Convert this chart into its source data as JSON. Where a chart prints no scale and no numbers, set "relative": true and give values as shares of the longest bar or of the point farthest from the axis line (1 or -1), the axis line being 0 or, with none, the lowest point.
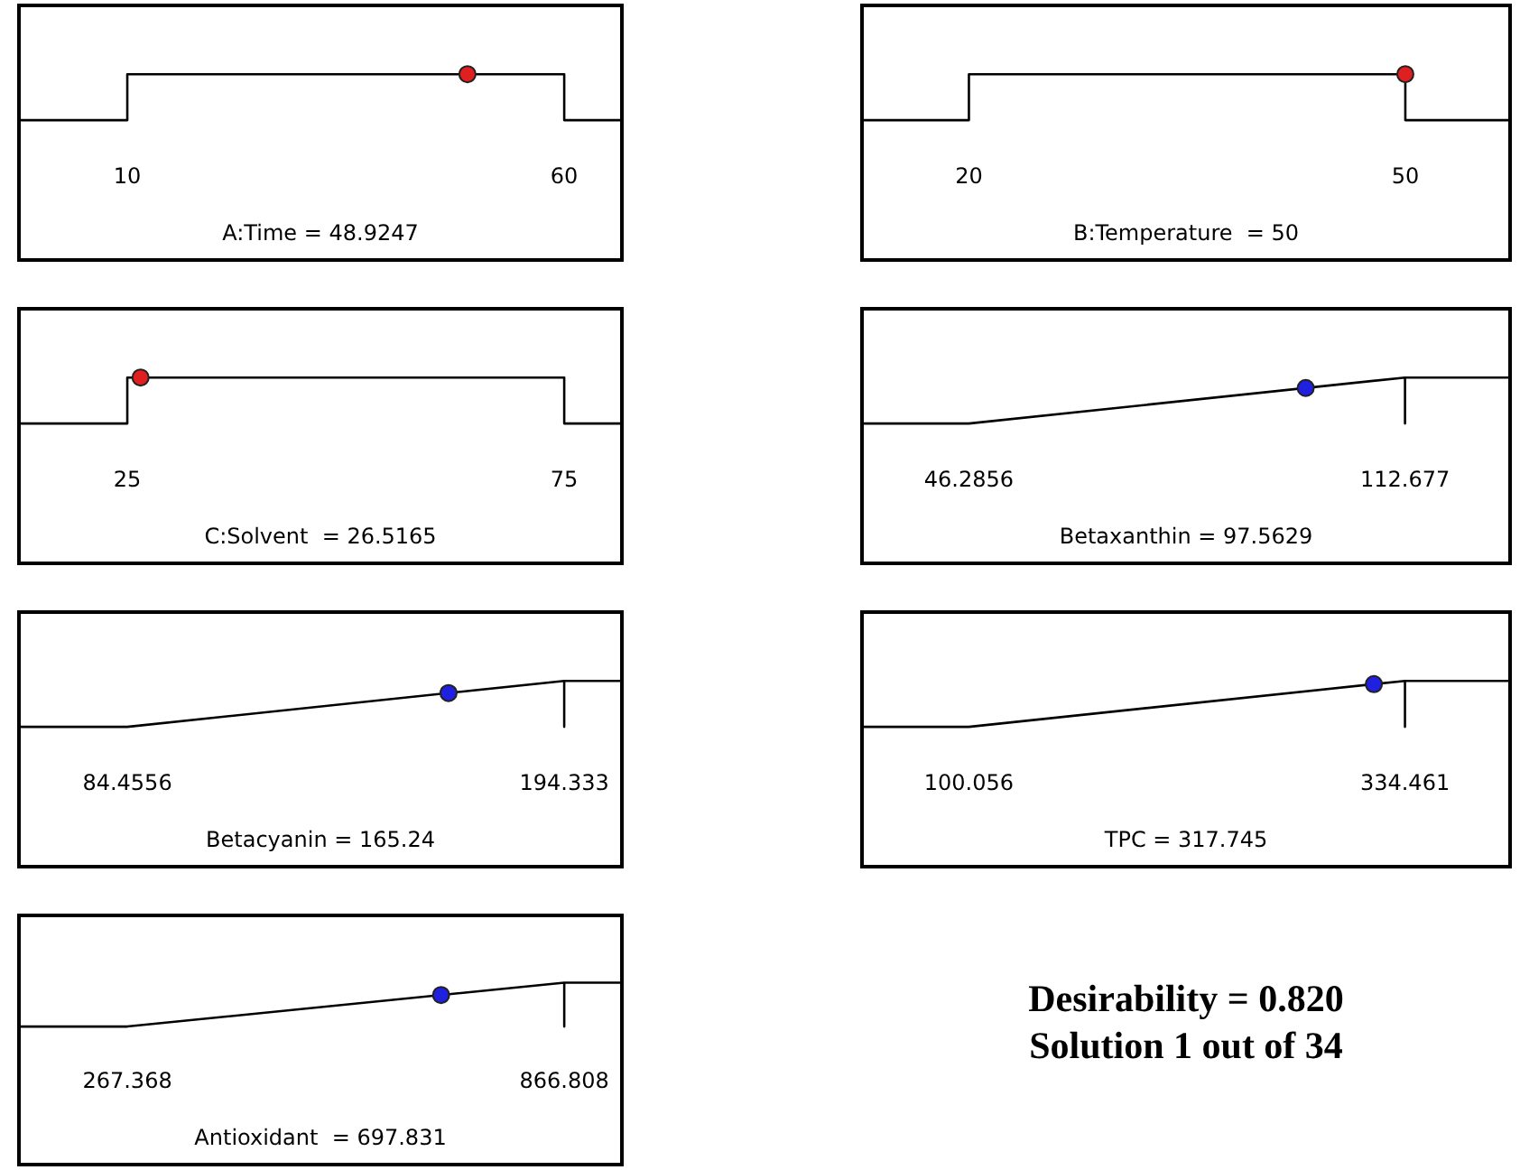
{
  "chart_data": [
    {
      "type": "line",
      "relative": true,
      "xlabel": "A:Time = 48.9247",
      "xlim": [
        -2.4,
        66.6
      ],
      "xticks": [
        10,
        60
      ],
      "tick_labels": "x",
      "grid": false,
      "series": [
        {
          "type": "line",
          "color": "#000000",
          "marker": "none",
          "x": [
            -2.4,
            10,
            10,
            60,
            60,
            66.6
          ],
          "values": [
            0,
            0,
            1,
            1,
            0,
            0
          ]
        },
        {
          "type": "scatter",
          "color": "#e02020",
          "marker": "circle",
          "x": [
            48.9247
          ],
          "values": [
            1
          ]
        }
      ]
    },
    {
      "type": "line",
      "relative": true,
      "xlabel": "B:Temperature  = 50",
      "xlim": [
        12.65,
        57.2
      ],
      "xticks": [
        20,
        50
      ],
      "tick_labels": "x",
      "grid": false,
      "series": [
        {
          "type": "line",
          "color": "#000000",
          "marker": "none",
          "x": [
            12.65,
            20,
            20,
            50,
            50,
            57.2
          ],
          "values": [
            0,
            0,
            1,
            1,
            0,
            0
          ]
        },
        {
          "type": "scatter",
          "color": "#e02020",
          "marker": "circle",
          "x": [
            50
          ],
          "values": [
            1
          ]
        }
      ]
    },
    {
      "type": "line",
      "relative": true,
      "xlabel": "C:Solvent  = 26.5165",
      "xlim": [
        12.6,
        81.6
      ],
      "xticks": [
        25,
        75
      ],
      "tick_labels": "x",
      "grid": false,
      "series": [
        {
          "type": "line",
          "color": "#000000",
          "marker": "none",
          "x": [
            12.6,
            25,
            25,
            75,
            75,
            81.6
          ],
          "values": [
            0,
            0,
            1,
            1,
            0,
            0
          ]
        },
        {
          "type": "scatter",
          "color": "#e02020",
          "marker": "circle",
          "x": [
            26.5165
          ],
          "values": [
            1
          ]
        }
      ]
    },
    {
      "type": "line",
      "relative": true,
      "xlabel": "Betaxanthin = 97.5629",
      "xlim": [
        30.02,
        128.67
      ],
      "xticks": [
        46.2856,
        112.677
      ],
      "tick_labels": "x",
      "grid": false,
      "series": [
        {
          "type": "line",
          "color": "#000000",
          "marker": "none",
          "x": [
            30.02,
            46.2856,
            112.677,
            112.677,
            112.677,
            128.67
          ],
          "values": [
            0,
            0,
            1,
            0,
            1,
            1
          ]
        },
        {
          "type": "scatter",
          "color": "#2020e0",
          "marker": "circle",
          "x": [
            97.5629
          ],
          "values": [
            0.772
          ]
        }
      ]
    },
    {
      "type": "line",
      "relative": true,
      "xlabel": "Betacyanin = 165.24",
      "xlim": [
        57.21,
        208.84
      ],
      "xticks": [
        84.4556,
        194.333
      ],
      "tick_labels": "x",
      "grid": false,
      "series": [
        {
          "type": "line",
          "color": "#000000",
          "marker": "none",
          "x": [
            57.21,
            84.4556,
            194.333,
            194.333,
            194.333,
            208.84
          ],
          "values": [
            0,
            0,
            1,
            0,
            1,
            1
          ]
        },
        {
          "type": "scatter",
          "color": "#2020e0",
          "marker": "circle",
          "x": [
            165.24
          ],
          "values": [
            0.735
          ]
        }
      ]
    },
    {
      "type": "line",
      "relative": true,
      "xlabel": "TPC = 317.745",
      "xlim": [
        42.63,
        390.95
      ],
      "xticks": [
        100.056,
        334.461
      ],
      "tick_labels": "x",
      "grid": false,
      "series": [
        {
          "type": "line",
          "color": "#000000",
          "marker": "none",
          "x": [
            42.63,
            100.056,
            334.461,
            334.461,
            334.461,
            390.95
          ],
          "values": [
            0,
            0,
            1,
            0,
            1,
            1
          ]
        },
        {
          "type": "scatter",
          "color": "#2020e0",
          "marker": "circle",
          "x": [
            317.745
          ],
          "values": [
            0.929
          ]
        }
      ]
    },
    {
      "type": "line",
      "relative": true,
      "xlabel": "Antioxidant  = 697.831",
      "xlim": [
        118.7,
        945.9
      ],
      "xticks": [
        267.368,
        866.808
      ],
      "tick_labels": "x",
      "grid": false,
      "series": [
        {
          "type": "line",
          "color": "#000000",
          "marker": "none",
          "x": [
            118.7,
            267.368,
            866.808,
            866.808,
            866.808,
            945.9
          ],
          "values": [
            0,
            0,
            1,
            0,
            1,
            1
          ]
        },
        {
          "type": "scatter",
          "color": "#2020e0",
          "marker": "circle",
          "x": [
            697.831
          ],
          "values": [
            0.718
          ]
        }
      ]
    },
    {
      "type": "other",
      "title": "Desirability  = 0.820",
      "subtitle": "Solution 1 out of 34"
    }
  ]
}
